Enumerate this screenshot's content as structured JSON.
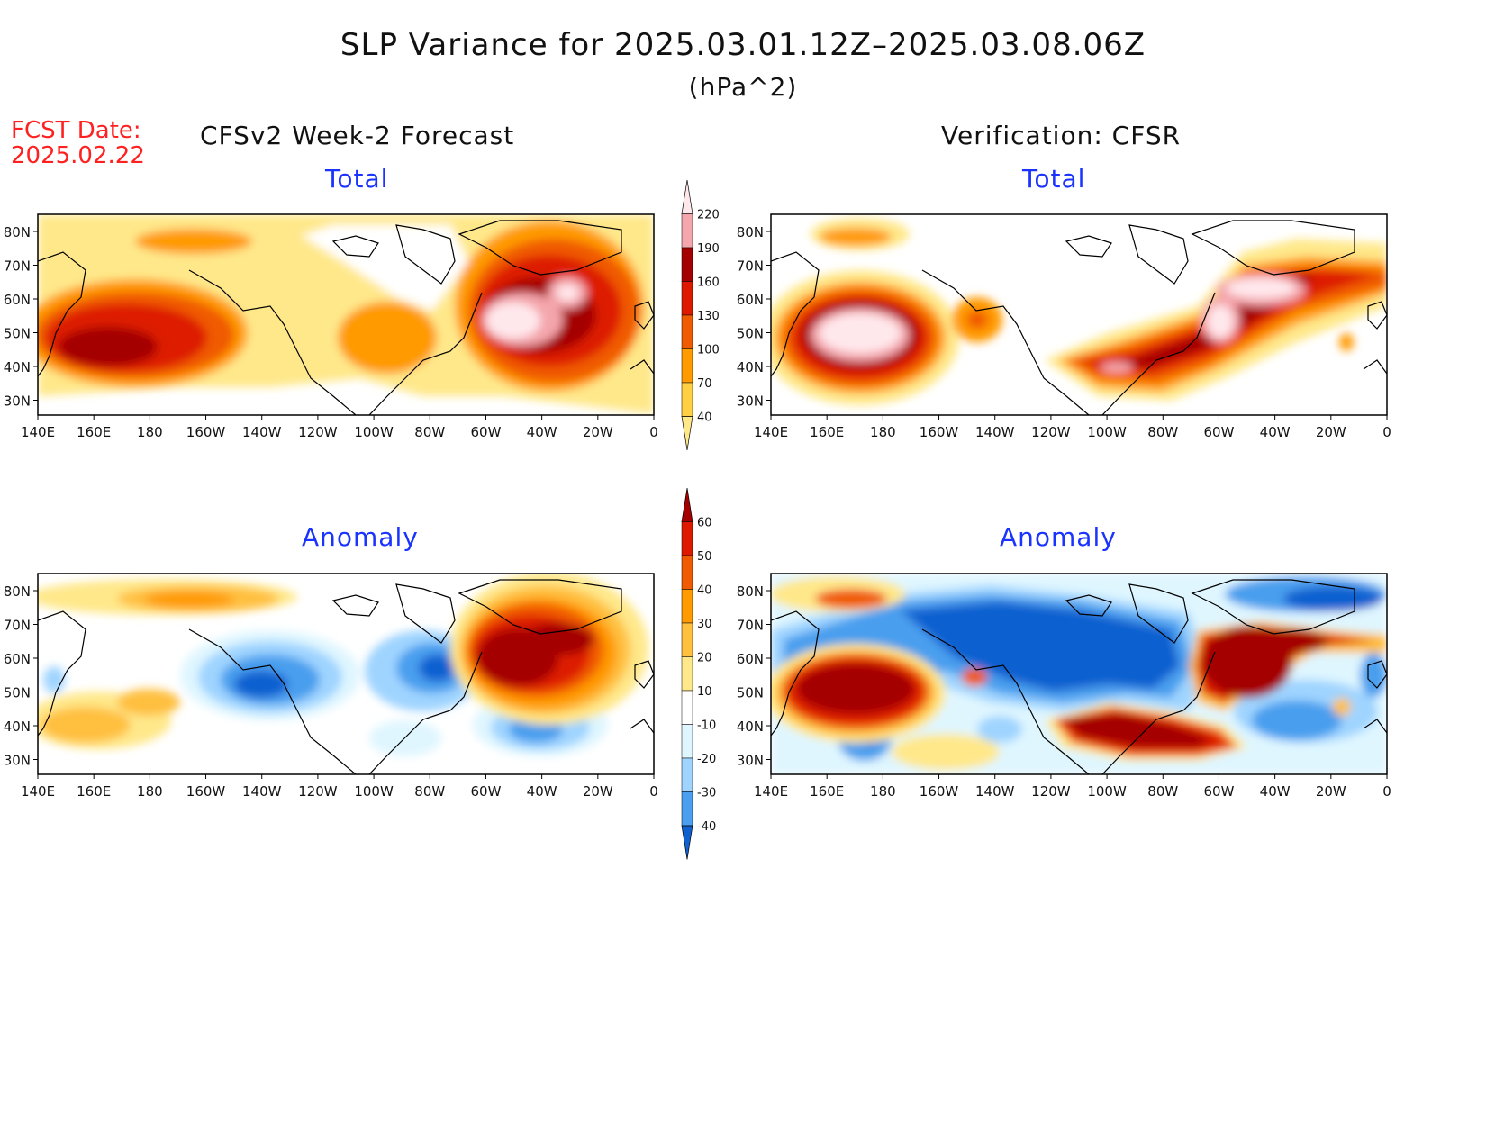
{
  "header": {
    "title": "SLP Variance for 2025.03.01.12Z–2025.03.08.06Z",
    "units": "(hPa^2)",
    "fcst_label": "FCST Date:",
    "fcst_date": "2025.02.22",
    "left_column": "CFSv2 Week-2 Forecast",
    "right_column": "Verification: CFSR"
  },
  "panels": [
    {
      "id": "forecast-total",
      "title": "Total"
    },
    {
      "id": "verification-total",
      "title": "Total"
    },
    {
      "id": "forecast-anomaly",
      "title": "Anomaly"
    },
    {
      "id": "verification-anomaly",
      "title": "Anomaly"
    }
  ],
  "axes": {
    "lon_ticks": [
      "140E",
      "160E",
      "180",
      "160W",
      "140W",
      "120W",
      "100W",
      "80W",
      "60W",
      "40W",
      "20W",
      "0"
    ],
    "lat_ticks": [
      "80N",
      "70N",
      "60N",
      "50N",
      "40N",
      "30N"
    ]
  },
  "colorbars": {
    "total": {
      "labels": [
        "220",
        "190",
        "160",
        "130",
        "100",
        "70",
        "40"
      ],
      "colors": [
        "#ffe8ec",
        "#f4a6ac",
        "#a40000",
        "#dd1a00",
        "#f05a00",
        "#ff9a00",
        "#ffd044",
        "#ffe88a"
      ]
    },
    "anomaly": {
      "labels": [
        "60",
        "50",
        "40",
        "30",
        "20",
        "10",
        "-10",
        "-20",
        "-30",
        "-40"
      ],
      "colors": [
        "#a40000",
        "#dd1a00",
        "#f05a00",
        "#ff9a00",
        "#ffc040",
        "#ffe88a",
        "#ffffff",
        "#dff6ff",
        "#9fd4ff",
        "#4a9fee",
        "#1060d0"
      ]
    }
  }
}
